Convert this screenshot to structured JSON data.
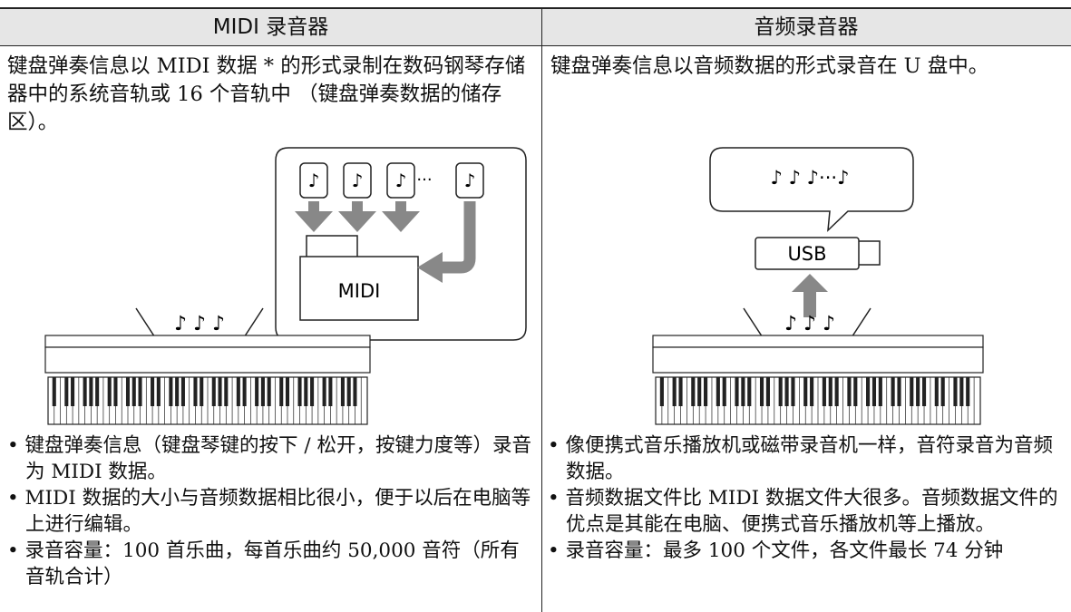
{
  "table": {
    "headers": [
      "MIDI 录音器",
      "音频录音器"
    ],
    "intro": [
      "键盘弹奏信息以 MIDI 数据 * 的形式录制在数码钢琴存储器中的系统音轨或 16 个音轨中 （键盘弹奏数据的储存区）。",
      "键盘弹奏信息以音频数据的形式录音在 U 盘中。"
    ],
    "illustrations": [
      {
        "note_boxes": [
          "♪",
          "♪",
          "♪",
          "♪"
        ],
        "ellipsis": "···",
        "box_label": "MIDI",
        "notes": "♪ ♪ ♪"
      },
      {
        "bubble": "♪ ♪ ♪···♪",
        "box_label": "USB",
        "notes": "♪ ♪ ♪"
      }
    ],
    "bullets": [
      [
        "键盘弹奏信息（键盘琴键的按下 / 松开，按键力度等）录音为 MIDI 数据。",
        "MIDI 数据的大小与音频数据相比很小，便于以后在电脑等上进行编辑。",
        "录音容量：100 首乐曲，每首乐曲约 50,000 音符（所有音轨合计）"
      ],
      [
        "像便携式音乐播放机或磁带录音机一样，音符录音为音频数据。",
        "音频数据文件比 MIDI 数据文件大很多。音频数据文件的优点是其能在电脑、便携式音乐播放机等上播放。",
        "录音容量：最多 100 个文件，各文件最长 74 分钟"
      ]
    ]
  }
}
